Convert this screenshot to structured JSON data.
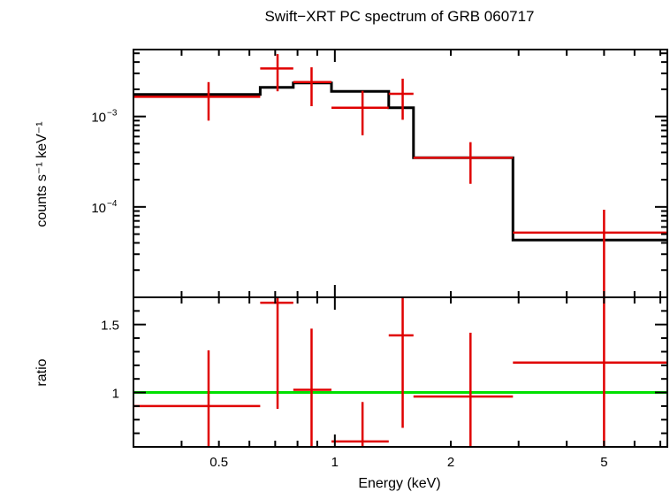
{
  "chart_data": [
    {
      "panel": "top",
      "type": "line",
      "title": "Swift−XRT PC spectrum of GRB 060717",
      "ylabel": "counts s⁻¹ keV⁻¹",
      "yscale": "log",
      "xscale": "log",
      "xlim": [
        0.3,
        7.3
      ],
      "ylim": [
        1e-05,
        0.0055
      ],
      "ytick_labels": [
        {
          "value": 0.001,
          "base": "10",
          "exp": "−3"
        },
        {
          "value": 0.0001,
          "base": "10",
          "exp": "−4"
        }
      ],
      "data_color": "#e00000",
      "model_color": "#000000",
      "data": [
        {
          "xlo": 0.3,
          "xhi": 0.64,
          "x": 0.47,
          "y": 0.00165,
          "ylo": 0.0009,
          "yhi": 0.0024
        },
        {
          "xlo": 0.64,
          "xhi": 0.78,
          "x": 0.71,
          "y": 0.0034,
          "ylo": 0.0019,
          "yhi": 0.0049
        },
        {
          "xlo": 0.78,
          "xhi": 0.98,
          "x": 0.87,
          "y": 0.0024,
          "ylo": 0.0013,
          "yhi": 0.0035
        },
        {
          "xlo": 0.98,
          "xhi": 1.38,
          "x": 1.18,
          "y": 0.00125,
          "ylo": 0.00062,
          "yhi": 0.00192
        },
        {
          "xlo": 1.38,
          "xhi": 1.6,
          "x": 1.5,
          "y": 0.00178,
          "ylo": 0.00092,
          "yhi": 0.00262
        },
        {
          "xlo": 1.6,
          "xhi": 2.9,
          "x": 2.25,
          "y": 0.00035,
          "ylo": 0.00018,
          "yhi": 0.00052
        },
        {
          "xlo": 2.9,
          "xhi": 7.3,
          "x": 5.0,
          "y": 5.2e-05,
          "ylo": 1e-05,
          "yhi": 9.3e-05
        }
      ],
      "model": [
        {
          "xlo": 0.3,
          "xhi": 0.64,
          "y": 0.00175
        },
        {
          "xlo": 0.64,
          "xhi": 0.78,
          "y": 0.0021
        },
        {
          "xlo": 0.78,
          "xhi": 0.98,
          "y": 0.00235
        },
        {
          "xlo": 0.98,
          "xhi": 1.38,
          "y": 0.0019
        },
        {
          "xlo": 1.38,
          "xhi": 1.6,
          "y": 0.00125
        },
        {
          "xlo": 1.6,
          "xhi": 2.9,
          "y": 0.00035
        },
        {
          "xlo": 2.9,
          "xhi": 7.3,
          "y": 4.3e-05
        }
      ]
    },
    {
      "panel": "bottom",
      "type": "line",
      "ylabel": "ratio",
      "xlabel": "Energy (keV)",
      "xscale": "log",
      "xlim": [
        0.3,
        7.3
      ],
      "ylim": [
        0.6,
        1.7
      ],
      "ytick_labels": [
        1.5,
        1
      ],
      "xtick_labels": [
        0.5,
        1,
        2,
        5
      ],
      "reference_line": 1.0,
      "reference_color": "#00e000",
      "data_color": "#e00000",
      "data": [
        {
          "xlo": 0.3,
          "xhi": 0.64,
          "x": 0.47,
          "y": 0.9,
          "ylo": 0.6,
          "yhi": 1.31
        },
        {
          "xlo": 0.64,
          "xhi": 0.78,
          "x": 0.71,
          "y": 1.66,
          "ylo": 0.88,
          "yhi": 1.7
        },
        {
          "xlo": 0.78,
          "xhi": 0.98,
          "x": 0.87,
          "y": 1.02,
          "ylo": 0.6,
          "yhi": 1.47
        },
        {
          "xlo": 0.98,
          "xhi": 1.38,
          "x": 1.18,
          "y": 0.64,
          "ylo": 0.6,
          "yhi": 0.93
        },
        {
          "xlo": 1.38,
          "xhi": 1.6,
          "x": 1.5,
          "y": 1.42,
          "ylo": 0.74,
          "yhi": 1.7
        },
        {
          "xlo": 1.6,
          "xhi": 2.9,
          "x": 2.25,
          "y": 0.97,
          "ylo": 0.6,
          "yhi": 1.44
        },
        {
          "xlo": 2.9,
          "xhi": 7.3,
          "x": 5.0,
          "y": 1.22,
          "ylo": 0.6,
          "yhi": 1.7
        }
      ]
    }
  ]
}
